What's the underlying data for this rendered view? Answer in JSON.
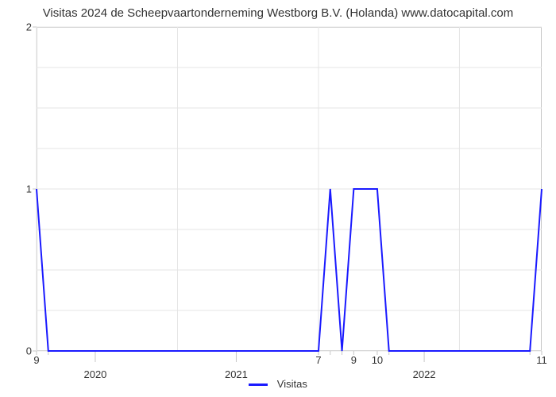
{
  "chart": {
    "type": "line",
    "title": "Visitas 2024 de Scheepvaartonderneming Westborg B.V. (Holanda) www.datocapital.com",
    "title_fontsize": 15,
    "background_color": "#ffffff",
    "grid_color": "#e5e5e5",
    "border_color": "#c6c6c6",
    "tick_label_color": "#333333",
    "line_color": "#1a1aff",
    "line_width": 2,
    "x_domain": [
      0,
      43
    ],
    "y_domain": [
      0,
      2
    ],
    "y_ticks": [
      0,
      1,
      2
    ],
    "y_minor_ticks": [
      0.25,
      0.5,
      0.75,
      1.25,
      1.5,
      1.75
    ],
    "x_major_ticks": [
      {
        "x": 5,
        "label": "2020"
      },
      {
        "x": 17,
        "label": "2021"
      },
      {
        "x": 33,
        "label": "2022"
      }
    ],
    "x_minor_at": [
      0,
      12,
      24,
      36
    ],
    "data_points": [
      {
        "x": 0,
        "y": 1,
        "label": "9"
      },
      {
        "x": 1,
        "y": 0,
        "label": ""
      },
      {
        "x": 24,
        "y": 0,
        "label": "7"
      },
      {
        "x": 25,
        "y": 1,
        "label": ""
      },
      {
        "x": 26,
        "y": 0,
        "label": ""
      },
      {
        "x": 27,
        "y": 1,
        "label": "9"
      },
      {
        "x": 29,
        "y": 1,
        "label": "10"
      },
      {
        "x": 30,
        "y": 0,
        "label": ""
      },
      {
        "x": 42,
        "y": 0,
        "label": ""
      },
      {
        "x": 43,
        "y": 1,
        "label": "11"
      }
    ],
    "legend": {
      "label": "Visitas",
      "swatch_color": "#1a1aff"
    }
  }
}
